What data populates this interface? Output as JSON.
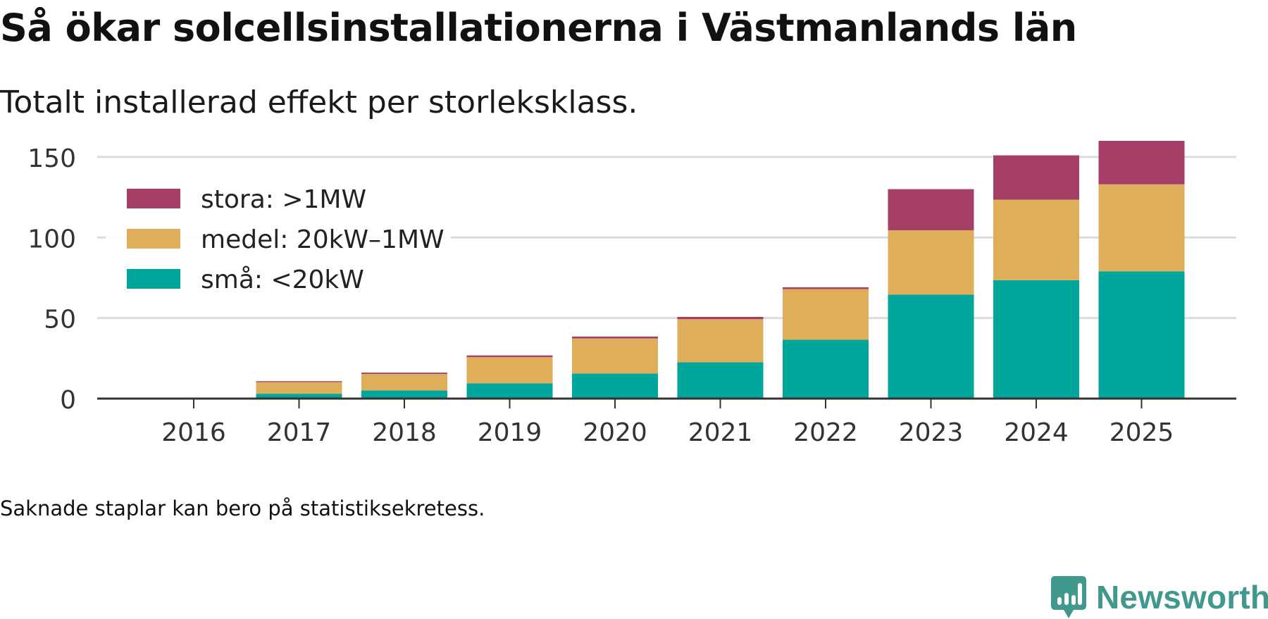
{
  "title": "Så ökar solcellsinstallationerna i Västmanlands län",
  "subtitle": "Totalt installerad effekt per storleksklass.",
  "note": "Saknade staplar kan bero på statistiksekretess.",
  "brand": {
    "name": "Newsworthy",
    "icon": "newsworthy-logo-icon",
    "color": "#41998e"
  },
  "chart_data": {
    "type": "bar",
    "stacked": true,
    "title": "Så ökar solcellsinstallationerna i Västmanlands län",
    "subtitle": "Totalt installerad effekt per storleksklass.",
    "xlabel": "",
    "ylabel": "",
    "ylim": [
      0,
      160
    ],
    "yticks": [
      0,
      50,
      100,
      150
    ],
    "grid": true,
    "legend_position": "top-left",
    "categories": [
      "2016",
      "2017",
      "2018",
      "2019",
      "2020",
      "2021",
      "2022",
      "2023",
      "2024",
      "2025"
    ],
    "series": [
      {
        "name": "små: <20kW",
        "color": "#00a59b",
        "values": [
          null,
          3,
          5,
          9.5,
          15.5,
          22.5,
          36.5,
          64.5,
          73.5,
          79
        ]
      },
      {
        "name": "medel: 20kW–1MW",
        "color": "#deae5a",
        "values": [
          null,
          7.2,
          10.3,
          16.2,
          21.8,
          26.8,
          31.5,
          40,
          50,
          54
        ]
      },
      {
        "name": "stora: >1MW",
        "color": "#a63f68",
        "values": [
          null,
          0.6,
          0.8,
          1.1,
          1.2,
          1.4,
          1.1,
          25.5,
          27.5,
          27
        ]
      }
    ],
    "legend_order": [
      "stora: >1MW",
      "medel: 20kW–1MW",
      "små: <20kW"
    ]
  }
}
